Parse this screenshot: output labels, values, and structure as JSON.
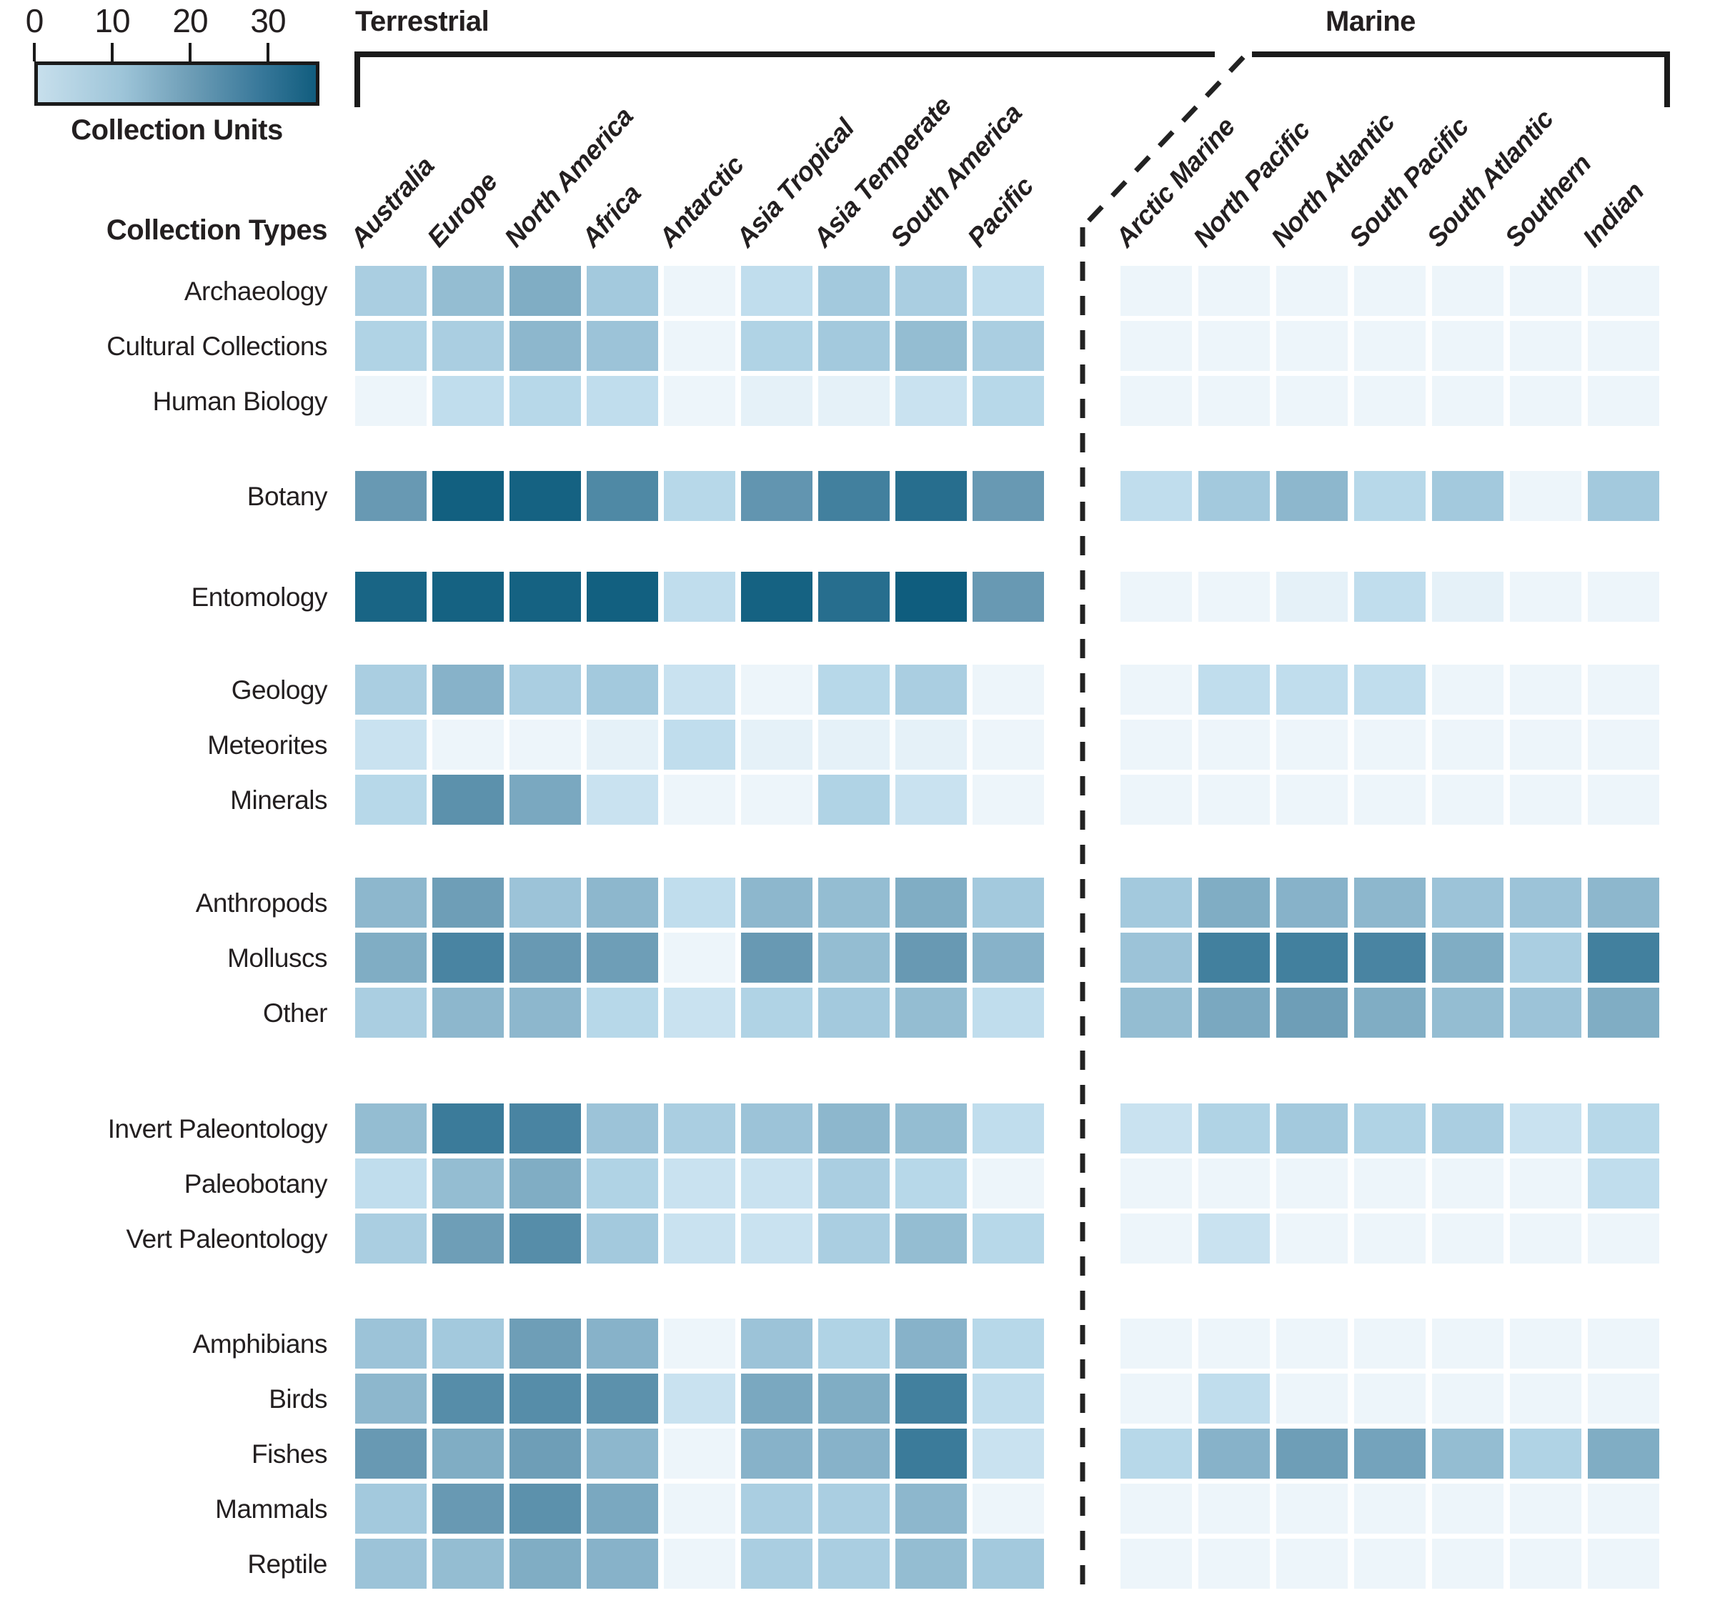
{
  "legend": {
    "title": "Collection Units",
    "ticks": [
      0,
      10,
      20,
      30
    ],
    "max_value": 36,
    "gradient_left_hex": "#c7dfec",
    "gradient_right_hex": "#115d7e"
  },
  "row_axis_title": "Collection Types",
  "zones": {
    "terrestrial": "Terrestrial",
    "marine": "Marine"
  },
  "chart_data": {
    "type": "heatmap",
    "unit": "Collection Units",
    "value_domain": [
      0,
      36
    ],
    "legend_position": "top-left",
    "column_groups": [
      {
        "name": "Terrestrial",
        "columns": [
          "Australia",
          "Europe",
          "North America",
          "Africa",
          "Antarctic",
          "Asia Tropical",
          "Asia Temperate",
          "South America",
          "Pacific"
        ]
      },
      {
        "name": "Marine",
        "columns": [
          "Arctic Marine",
          "North Pacific",
          "North Atlantic",
          "South Pacific",
          "South Atlantic",
          "Southern",
          "Indian"
        ]
      }
    ],
    "row_groups": [
      [
        "Archaeology",
        "Cultural Collections",
        "Human Biology"
      ],
      [
        "Botany"
      ],
      [
        "Entomology"
      ],
      [
        "Geology",
        "Meteorites",
        "Minerals"
      ],
      [
        "Anthropods",
        "Molluscs",
        "Other"
      ],
      [
        "Invert Paleontology",
        "Paleobotany",
        "Vert Paleontology"
      ],
      [
        "Amphibians",
        "Birds",
        "Fishes",
        "Mammals",
        "Reptile"
      ]
    ],
    "rows": [
      {
        "label": "Archaeology",
        "values": [
          9,
          12,
          15,
          10,
          1,
          6,
          10,
          9,
          6,
          1,
          1,
          1,
          1,
          1,
          1,
          1
        ]
      },
      {
        "label": "Cultural Collections",
        "values": [
          8,
          9,
          13,
          11,
          1,
          8,
          10,
          12,
          9,
          1,
          1,
          1,
          1,
          1,
          1,
          1
        ]
      },
      {
        "label": "Human Biology",
        "values": [
          1,
          6,
          7,
          6,
          1,
          2,
          2,
          5,
          7,
          1,
          1,
          1,
          1,
          1,
          1,
          1
        ]
      },
      {
        "label": "Botany",
        "values": [
          19,
          34,
          33,
          23,
          7,
          20,
          25,
          29,
          19,
          6,
          10,
          13,
          7,
          10,
          1,
          10
        ]
      },
      {
        "label": "Entomology",
        "values": [
          32,
          33,
          33,
          34,
          6,
          33,
          29,
          35,
          19,
          1,
          1,
          2,
          6,
          2,
          1,
          1
        ]
      },
      {
        "label": "Geology",
        "values": [
          9,
          14,
          9,
          10,
          5,
          1,
          7,
          9,
          1,
          1,
          6,
          6,
          6,
          1,
          1,
          1
        ]
      },
      {
        "label": "Meteorites",
        "values": [
          5,
          1,
          1,
          2,
          6,
          2,
          2,
          2,
          1,
          1,
          1,
          1,
          1,
          1,
          1,
          1
        ]
      },
      {
        "label": "Minerals",
        "values": [
          7,
          21,
          16,
          5,
          1,
          1,
          8,
          5,
          1,
          1,
          1,
          1,
          1,
          1,
          1,
          1
        ]
      },
      {
        "label": "Anthropods",
        "values": [
          13,
          18,
          11,
          13,
          6,
          13,
          12,
          15,
          10,
          10,
          15,
          14,
          13,
          11,
          11,
          13
        ]
      },
      {
        "label": "Molluscs",
        "values": [
          15,
          24,
          19,
          18,
          1,
          19,
          12,
          19,
          14,
          11,
          25,
          25,
          24,
          15,
          9,
          25
        ]
      },
      {
        "label": "Other",
        "values": [
          9,
          13,
          13,
          7,
          5,
          8,
          10,
          12,
          6,
          12,
          16,
          18,
          15,
          12,
          11,
          15
        ]
      },
      {
        "label": "Invert Paleontology",
        "values": [
          12,
          26,
          24,
          11,
          9,
          11,
          13,
          12,
          6,
          5,
          8,
          10,
          8,
          9,
          5,
          7
        ]
      },
      {
        "label": "Paleobotany",
        "values": [
          6,
          12,
          15,
          8,
          5,
          5,
          9,
          7,
          1,
          1,
          1,
          1,
          1,
          1,
          1,
          6
        ]
      },
      {
        "label": "Vert Paleontology",
        "values": [
          9,
          18,
          22,
          10,
          5,
          5,
          9,
          12,
          7,
          1,
          5,
          1,
          1,
          1,
          1,
          1
        ]
      },
      {
        "label": "Amphibians",
        "values": [
          11,
          10,
          18,
          14,
          1,
          11,
          8,
          14,
          7,
          1,
          1,
          1,
          1,
          1,
          1,
          1
        ]
      },
      {
        "label": "Birds",
        "values": [
          13,
          22,
          22,
          21,
          5,
          16,
          15,
          25,
          6,
          1,
          6,
          1,
          1,
          1,
          1,
          1
        ]
      },
      {
        "label": "Fishes",
        "values": [
          19,
          15,
          18,
          13,
          1,
          14,
          14,
          26,
          5,
          7,
          14,
          18,
          17,
          12,
          8,
          15
        ]
      },
      {
        "label": "Mammals",
        "values": [
          10,
          19,
          21,
          16,
          1,
          9,
          9,
          13,
          1,
          1,
          1,
          1,
          1,
          1,
          1,
          1
        ]
      },
      {
        "label": "Reptile",
        "values": [
          11,
          12,
          15,
          14,
          1,
          9,
          9,
          12,
          10,
          1,
          1,
          1,
          1,
          1,
          1,
          1
        ]
      }
    ],
    "colormap_stops": [
      [
        0,
        "#f3f8fc"
      ],
      [
        1,
        "#edf5fa"
      ],
      [
        3,
        "#ddecf5"
      ],
      [
        5,
        "#c9e2f0"
      ],
      [
        7,
        "#b7d8e9"
      ],
      [
        10,
        "#a3c9dd"
      ],
      [
        13,
        "#8db7cd"
      ],
      [
        16,
        "#7aa8c0"
      ],
      [
        19,
        "#6899b3"
      ],
      [
        22,
        "#568da9"
      ],
      [
        25,
        "#42809e"
      ],
      [
        28,
        "#2c7292"
      ],
      [
        31,
        "#1c6787"
      ],
      [
        34,
        "#126080"
      ],
      [
        36,
        "#0c5a7c"
      ]
    ]
  }
}
